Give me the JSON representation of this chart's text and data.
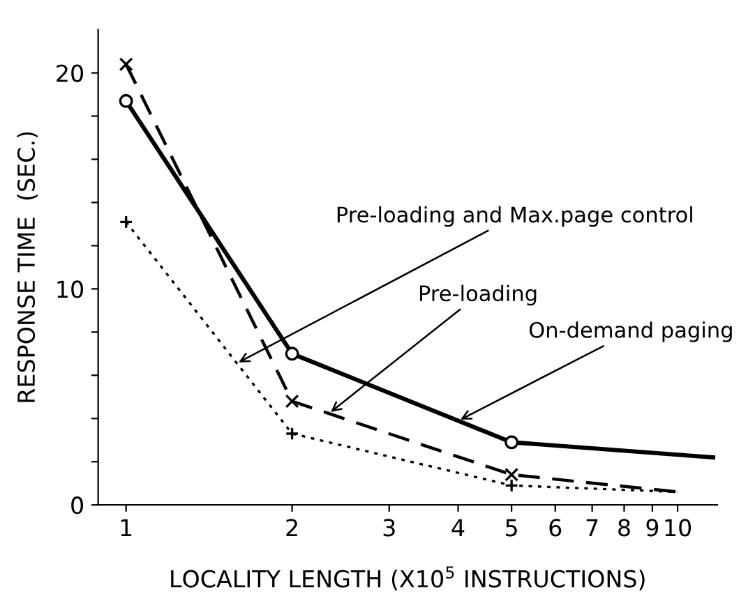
{
  "chart_data": {
    "type": "line",
    "xlabel": "LOCALITY LENGTH (X10$^{5}$ INSTRUCTIONS)",
    "ylabel": "RESPONSE TIME  (SEC.)",
    "log": "x",
    "xlim": [
      0.89,
      11.8
    ],
    "xticks": [
      1,
      2,
      3,
      4,
      5,
      6,
      7,
      8,
      9,
      10
    ],
    "ylim": [
      0,
      22
    ],
    "yticks": [
      0,
      {
        "value": 2,
        "label": null
      },
      {
        "value": 4,
        "label": null
      },
      {
        "value": 6,
        "label": null
      },
      {
        "value": 8,
        "label": null
      },
      10,
      {
        "value": 12,
        "label": null
      },
      {
        "value": 14,
        "label": null
      },
      {
        "value": 16,
        "label": null
      },
      {
        "value": 18,
        "label": null
      },
      20
    ],
    "grid": false,
    "legend": false,
    "series": [
      {
        "color": "#000000",
        "x": [
          1,
          2,
          5,
          11.6
        ],
        "values": [
          18.7,
          7.0,
          2.9,
          2.2
        ],
        "line_style": "solid",
        "marker": "circle"
      },
      {
        "color": "#000000",
        "x": [
          1,
          2,
          5,
          10
        ],
        "values": [
          20.4,
          4.8,
          1.4,
          0.6
        ],
        "line_style": "dashed",
        "marker": "cross"
      },
      {
        "color": "#000000",
        "x": [
          1,
          2,
          5,
          10
        ],
        "values": [
          13.1,
          3.3,
          0.9,
          0.6
        ],
        "line_style": "dotted",
        "marker": "plus"
      }
    ],
    "annotations": [
      {
        "text": "Pre-loading and Max.page control",
        "x": 1.6,
        "y": 6.6
      },
      {
        "text": "Pre-loading",
        "x": 2.35,
        "y": 4.3
      },
      {
        "text": "On-demand paging",
        "x": 4.04,
        "y": 3.95
      }
    ]
  }
}
